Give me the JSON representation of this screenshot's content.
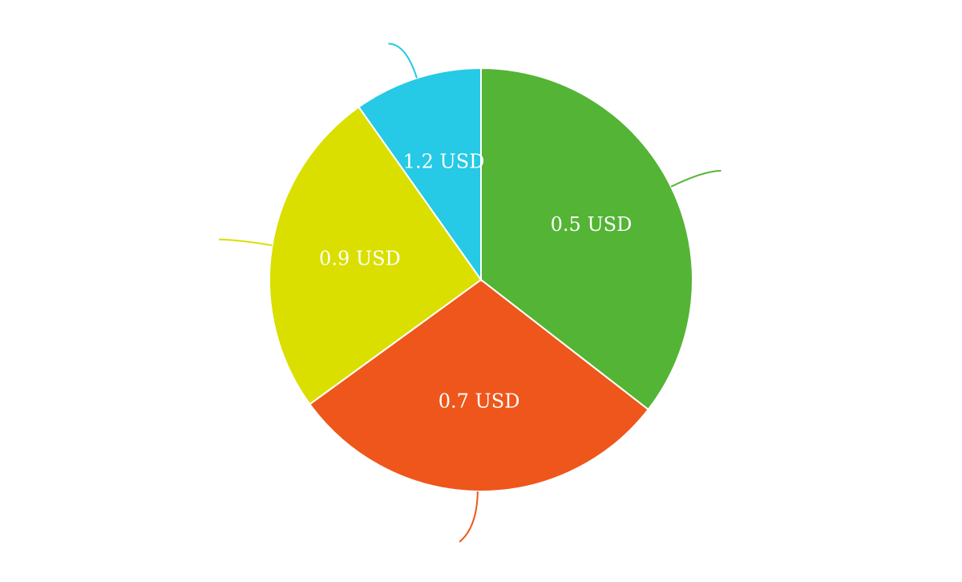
{
  "chart_data": {
    "type": "pie",
    "start_angle_deg": 0,
    "direction": "clockwise",
    "legend": "none",
    "slices": [
      {
        "label": "0.5  USD",
        "value": 35.5,
        "color": "#54b435"
      },
      {
        "label": "0.7  USD",
        "value": 29.5,
        "color": "#ee561b"
      },
      {
        "label": "0.9  USD",
        "value": 25.2,
        "color": "#dadf00"
      },
      {
        "label": "1.2  USD",
        "value": 9.8,
        "color": "#26c9e6"
      }
    ]
  }
}
